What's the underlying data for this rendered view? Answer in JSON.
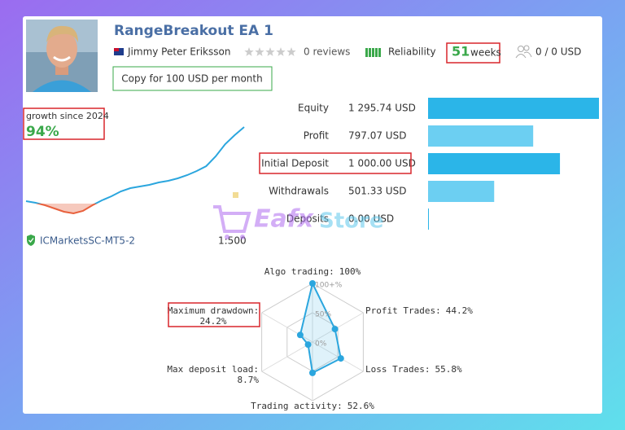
{
  "header": {
    "title": "RangeBreakout EA 1",
    "author": "Jimmy Peter Eriksson",
    "reviews": "0 reviews",
    "reliability": "Reliability",
    "weeks_value": "51",
    "weeks_label": "weeks",
    "subscribers": "0 / 0 USD",
    "copy_button": "Copy for 100 USD per month"
  },
  "growth": {
    "label": "growth since 2024",
    "value": "94%",
    "broker": "ICMarketsSC-MT5-2",
    "leverage": "1:500",
    "series": {
      "values": [
        3,
        1,
        -2,
        -6,
        -10,
        -12,
        -9,
        -2,
        4,
        9,
        15,
        19,
        21,
        23,
        26,
        28,
        31,
        35,
        40,
        46,
        58,
        73,
        84,
        94
      ],
      "color": "#2ba6de",
      "negative_color": "#e8603c"
    },
    "ylim": [
      -15,
      100
    ]
  },
  "stats": {
    "rows": [
      {
        "label": "Equity",
        "value": "1 295.74 USD",
        "amount": 1295.74,
        "color": "#2bb5e8"
      },
      {
        "label": "Profit",
        "value": "797.07 USD",
        "amount": 797.07,
        "color": "#6ccff2"
      },
      {
        "label": "Initial Deposit",
        "value": "1 000.00 USD",
        "amount": 1000.0,
        "color": "#2bb5e8"
      },
      {
        "label": "Withdrawals",
        "value": "501.33 USD",
        "amount": 501.33,
        "color": "#6ccff2"
      },
      {
        "label": "Deposits",
        "value": "0.00 USD",
        "amount": 0.0,
        "color": "#2bb5e8"
      }
    ]
  },
  "watermark": {
    "brand": "Eafx",
    "suffix": "Store"
  },
  "radar": {
    "color": "#2ba6de",
    "ticks": [
      {
        "value": 100,
        "label": "100+%"
      },
      {
        "value": 50,
        "label": "50%"
      },
      {
        "value": 0,
        "label": "0%"
      }
    ],
    "rlim": [
      0,
      100
    ],
    "axes": [
      {
        "label": "Algo trading:",
        "value_label": "100%",
        "value": 100
      },
      {
        "label": "Profit Trades:",
        "value_label": "44.2%",
        "value": 44.2
      },
      {
        "label": "Loss Trades:",
        "value_label": "55.8%",
        "value": 55.8
      },
      {
        "label": "Trading activity:",
        "value_label": "52.6%",
        "value": 52.6
      },
      {
        "label": "Max deposit load:",
        "value_label": "8.7%",
        "value": 8.7
      },
      {
        "label": "Maximum drawdown:",
        "value_label": "24.2%",
        "value": 24.2
      }
    ]
  }
}
